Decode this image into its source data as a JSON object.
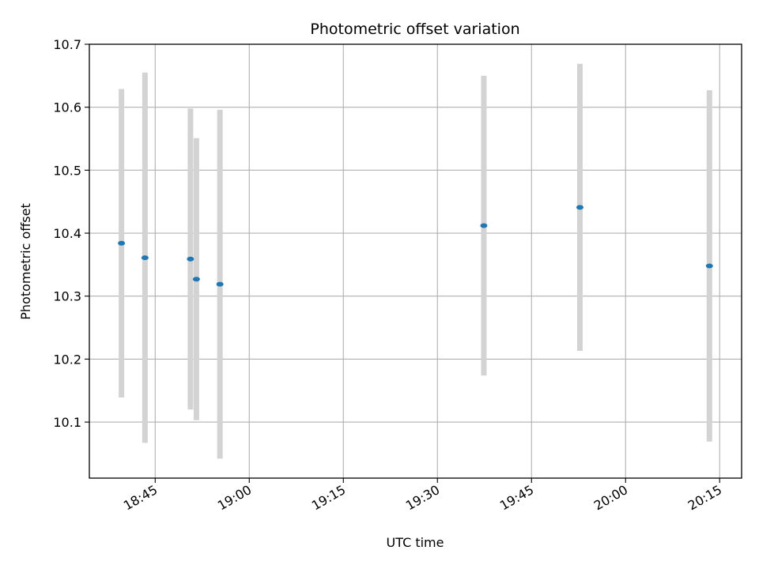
{
  "chart_data": {
    "type": "scatter",
    "title": "Photometric offset variation",
    "xlabel": "UTC time",
    "ylabel": "Photometric offset",
    "x_ticks": [
      "18:45",
      "19:00",
      "19:15",
      "19:30",
      "19:45",
      "20:00",
      "20:15"
    ],
    "x_tick_minutes": [
      0,
      15,
      30,
      45,
      60,
      75,
      90
    ],
    "y_ticks": [
      "10.1",
      "10.2",
      "10.3",
      "10.4",
      "10.5",
      "10.6",
      "10.7"
    ],
    "xlim_minutes": [
      -10.5,
      93.5
    ],
    "ylim": [
      10.011,
      10.7
    ],
    "grid": true,
    "point_color": "#1f77b4",
    "errorbar_color": "#d3d3d3",
    "points": [
      {
        "time": "18:39:37",
        "minutes": -5.38,
        "y": 10.384,
        "ymin": 10.139,
        "ymax": 10.629
      },
      {
        "time": "18:43:22",
        "minutes": -1.63,
        "y": 10.361,
        "ymin": 10.067,
        "ymax": 10.655
      },
      {
        "time": "18:50:37",
        "minutes": 5.62,
        "y": 10.359,
        "ymin": 10.12,
        "ymax": 10.598
      },
      {
        "time": "18:51:34",
        "minutes": 6.57,
        "y": 10.327,
        "ymin": 10.103,
        "ymax": 10.551
      },
      {
        "time": "18:55:19",
        "minutes": 10.32,
        "y": 10.319,
        "ymin": 10.042,
        "ymax": 10.596
      },
      {
        "time": "19:37:24",
        "minutes": 52.4,
        "y": 10.412,
        "ymin": 10.174,
        "ymax": 10.65
      },
      {
        "time": "19:52:43",
        "minutes": 67.72,
        "y": 10.441,
        "ymin": 10.213,
        "ymax": 10.669
      },
      {
        "time": "20:13:22",
        "minutes": 88.37,
        "y": 10.348,
        "ymin": 10.069,
        "ymax": 10.627
      }
    ]
  }
}
